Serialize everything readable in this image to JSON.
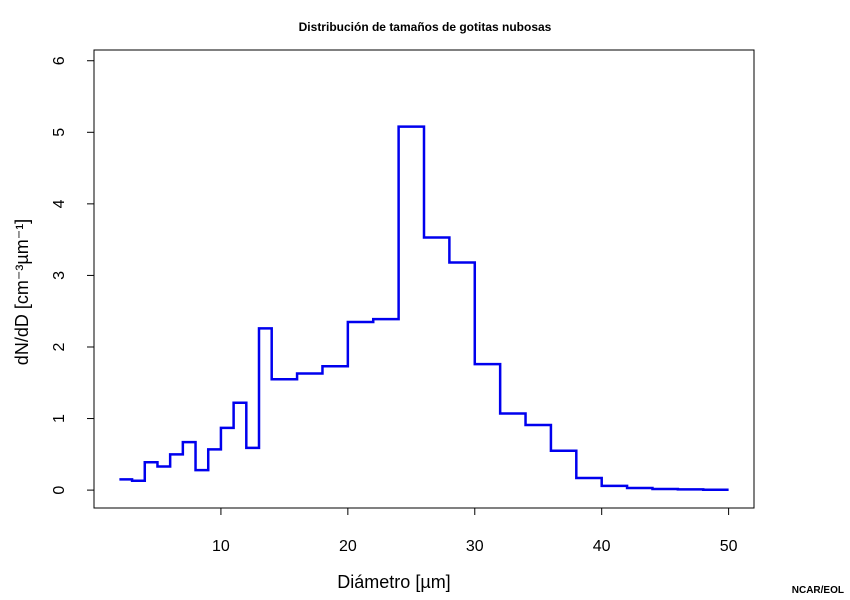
{
  "chart_data": {
    "type": "line",
    "step": true,
    "title": "Distribución de tamaños de gotitas nubosas",
    "xlabel": "Diámetro [µm]",
    "ylabel": "dN/dD [cm⁻³µm⁻¹]",
    "xlim": [
      0,
      52
    ],
    "ylim": [
      -0.25,
      6.15
    ],
    "x_ticks": [
      10,
      20,
      30,
      40,
      50
    ],
    "y_ticks": [
      0,
      1,
      2,
      3,
      4,
      5,
      6
    ],
    "grid": false,
    "legend": "none",
    "series": [
      {
        "color": "#0000ee",
        "bins": [
          {
            "x0": 2,
            "x1": 3,
            "y": 0.15
          },
          {
            "x0": 3,
            "x1": 4,
            "y": 0.13
          },
          {
            "x0": 4,
            "x1": 5,
            "y": 0.39
          },
          {
            "x0": 5,
            "x1": 6,
            "y": 0.33
          },
          {
            "x0": 6,
            "x1": 7,
            "y": 0.5
          },
          {
            "x0": 7,
            "x1": 8,
            "y": 0.67
          },
          {
            "x0": 8,
            "x1": 9,
            "y": 0.28
          },
          {
            "x0": 9,
            "x1": 10,
            "y": 0.57
          },
          {
            "x0": 10,
            "x1": 11,
            "y": 0.87
          },
          {
            "x0": 11,
            "x1": 12,
            "y": 1.22
          },
          {
            "x0": 12,
            "x1": 13,
            "y": 0.59
          },
          {
            "x0": 13,
            "x1": 14,
            "y": 2.26
          },
          {
            "x0": 14,
            "x1": 16,
            "y": 1.55
          },
          {
            "x0": 16,
            "x1": 18,
            "y": 1.63
          },
          {
            "x0": 18,
            "x1": 20,
            "y": 1.73
          },
          {
            "x0": 20,
            "x1": 22,
            "y": 2.35
          },
          {
            "x0": 22,
            "x1": 24,
            "y": 2.39
          },
          {
            "x0": 24,
            "x1": 26,
            "y": 5.08
          },
          {
            "x0": 26,
            "x1": 28,
            "y": 3.53
          },
          {
            "x0": 28,
            "x1": 30,
            "y": 3.18
          },
          {
            "x0": 30,
            "x1": 32,
            "y": 1.76
          },
          {
            "x0": 32,
            "x1": 34,
            "y": 1.07
          },
          {
            "x0": 34,
            "x1": 36,
            "y": 0.91
          },
          {
            "x0": 36,
            "x1": 38,
            "y": 0.55
          },
          {
            "x0": 38,
            "x1": 40,
            "y": 0.17
          },
          {
            "x0": 40,
            "x1": 42,
            "y": 0.06
          },
          {
            "x0": 42,
            "x1": 44,
            "y": 0.03
          },
          {
            "x0": 44,
            "x1": 46,
            "y": 0.015
          },
          {
            "x0": 46,
            "x1": 48,
            "y": 0.01
          },
          {
            "x0": 48,
            "x1": 50,
            "y": 0.005
          }
        ]
      }
    ]
  },
  "credit": "NCAR/EOL"
}
